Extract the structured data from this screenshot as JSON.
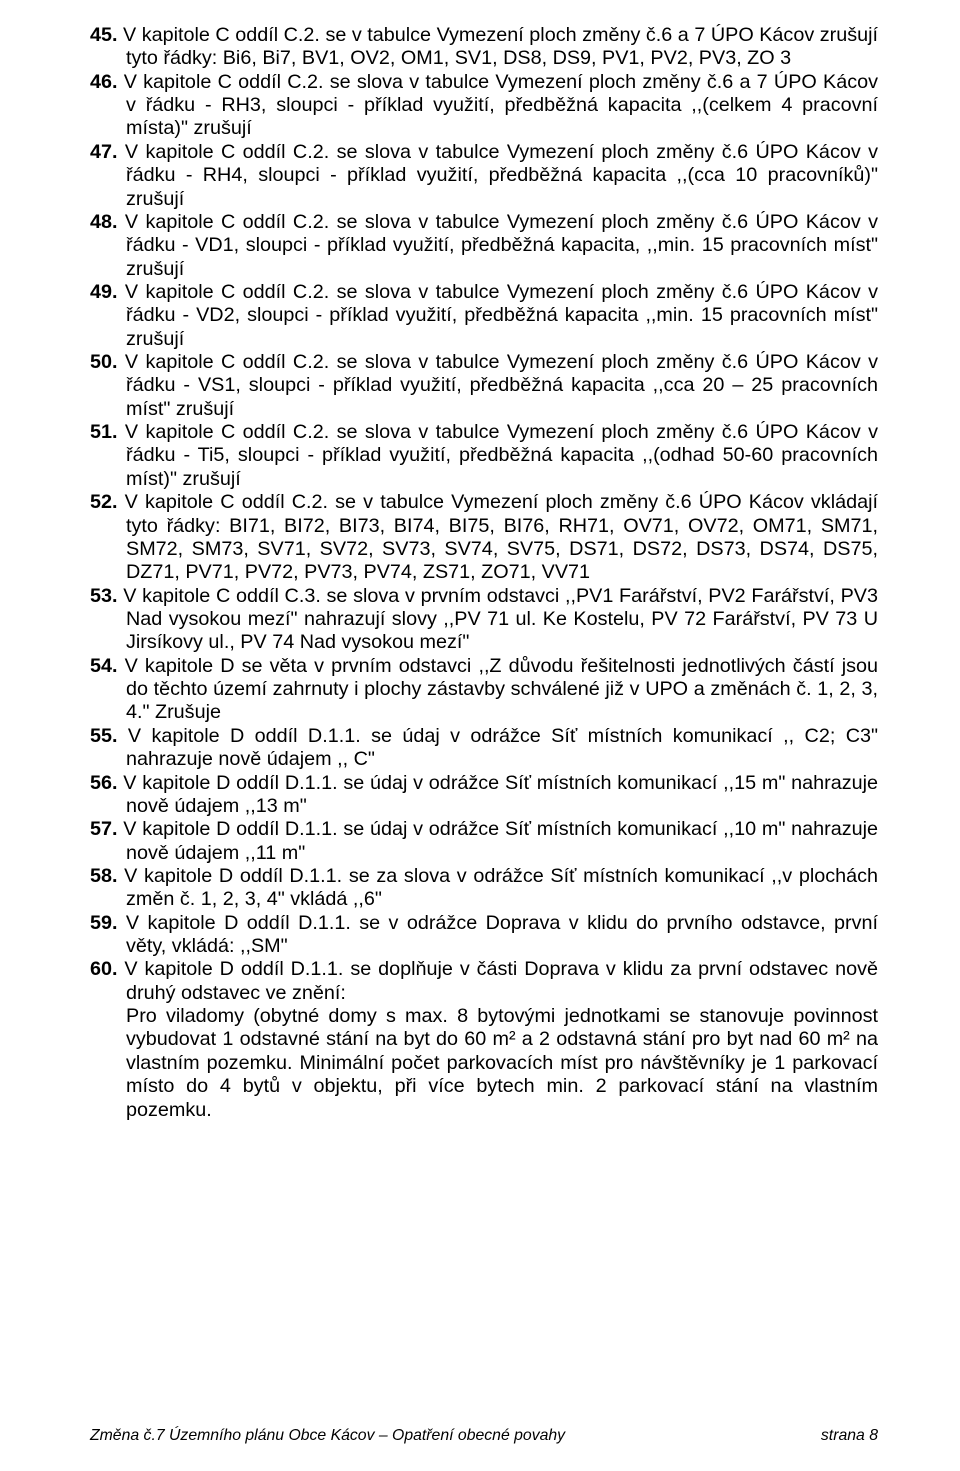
{
  "items": [
    {
      "num": "45.",
      "text": "V kapitole C oddíl C.2. se v tabulce Vymezení ploch změny č.6 a 7 ÚPO Kácov zrušují tyto řádky: Bi6, Bi7, BV1, OV2, OM1, SV1, DS8, DS9, PV1, PV2, PV3, ZO 3"
    },
    {
      "num": "46.",
      "text": "V kapitole C oddíl C.2. se slova v tabulce Vymezení ploch změny č.6 a 7 ÚPO Kácov v řádku - RH3, sloupci - příklad využití, předběžná kapacita ,,(celkem 4 pracovní místa)\" zrušují"
    },
    {
      "num": "47.",
      "text": "V kapitole C oddíl C.2. se slova v tabulce Vymezení ploch změny č.6 ÚPO Kácov v řádku - RH4, sloupci - příklad využití, předběžná kapacita ,,(cca 10 pracovníků)\" zrušují"
    },
    {
      "num": "48.",
      "text": "V kapitole C oddíl C.2. se slova v tabulce Vymezení ploch změny č.6 ÚPO Kácov v řádku - VD1, sloupci - příklad využití, předběžná kapacita, ,,min. 15 pracovních míst\" zrušují"
    },
    {
      "num": "49.",
      "text": "V kapitole C oddíl C.2. se slova v tabulce Vymezení ploch změny č.6 ÚPO Kácov v řádku - VD2, sloupci - příklad využití, předběžná kapacita ,,min. 15 pracovních míst\" zrušují"
    },
    {
      "num": "50.",
      "text": "V kapitole C oddíl C.2. se slova v tabulce Vymezení ploch změny č.6 ÚPO Kácov v řádku - VS1, sloupci - příklad využití, předběžná kapacita ,,cca 20 – 25 pracovních míst\" zrušují"
    },
    {
      "num": "51.",
      "text": "V kapitole C oddíl C.2. se slova v tabulce Vymezení ploch změny č.6 ÚPO Kácov v řádku - Ti5, sloupci - příklad využití, předběžná kapacita ,,(odhad 50-60 pracovních míst)\" zrušují"
    },
    {
      "num": "52.",
      "text": "V kapitole C oddíl C.2. se v tabulce Vymezení ploch změny č.6 ÚPO Kácov vkládají tyto řádky: BI71, BI72, BI73, BI74, BI75, BI76, RH71, OV71, OV72, OM71, SM71, SM72, SM73, SV71, SV72, SV73, SV74, SV75, DS71, DS72, DS73, DS74, DS75, DZ71, PV71, PV72, PV73, PV74, ZS71, ZO71, VV71"
    },
    {
      "num": "53.",
      "text": "V kapitole C oddíl C.3. se slova v prvním odstavci ,,PV1 Farářství, PV2 Farářství, PV3 Nad vysokou mezí\" nahrazují slovy ,,PV 71 ul. Ke Kostelu, PV 72 Farářství, PV 73 U Jirsíkovy ul., PV 74 Nad vysokou mezí\""
    },
    {
      "num": "54.",
      "text": "V kapitole D se věta v prvním odstavci ,,Z důvodu řešitelnosti jednotlivých částí jsou do těchto území zahrnuty i plochy zástavby schválené již v UPO a změnách č. 1, 2, 3, 4.\" Zrušuje"
    },
    {
      "num": "55.",
      "text": "V kapitole D oddíl D.1.1. se údaj v odrážce Síť místních komunikací ,, C2; C3\" nahrazuje nově údajem ,, C\""
    },
    {
      "num": "56.",
      "text": "V kapitole D oddíl D.1.1. se údaj v odrážce Síť místních komunikací ,,15 m\" nahrazuje nově údajem ,,13 m\""
    },
    {
      "num": "57.",
      "text": "V kapitole D oddíl D.1.1. se údaj v odrážce Síť místních komunikací ,,10 m\" nahrazuje nově údajem ,,11 m\""
    },
    {
      "num": "58.",
      "text": "V kapitole D oddíl D.1.1. se za slova v odrážce Síť místních komunikací ,,v plochách změn č. 1, 2, 3, 4\" vkládá ,,6\""
    },
    {
      "num": "59.",
      "text": "V kapitole D oddíl D.1.1. se v odrážce Doprava v klidu do prvního odstavce, první věty, vkládá: ,,SM\""
    },
    {
      "num": "60.",
      "text": "V kapitole D oddíl D.1.1. se doplňuje v části Doprava v klidu za první odstavec nově druhý odstavec ve znění:"
    }
  ],
  "sub60": "Pro viladomy (obytné domy s max. 8 bytovými jednotkami se stanovuje povinnost vybudovat 1 odstavné stání na byt do 60 m² a 2 odstavná stání pro byt nad 60 m² na vlastním pozemku. Minimální počet parkovacích míst pro návštěvníky je 1 parkovací místo do 4 bytů v objektu, při více bytech min. 2 parkovací stání na vlastním pozemku.",
  "footer": {
    "left": "Změna č.7 Územního plánu Obce Kácov – Opatření obecné povahy",
    "right": "strana 8"
  }
}
